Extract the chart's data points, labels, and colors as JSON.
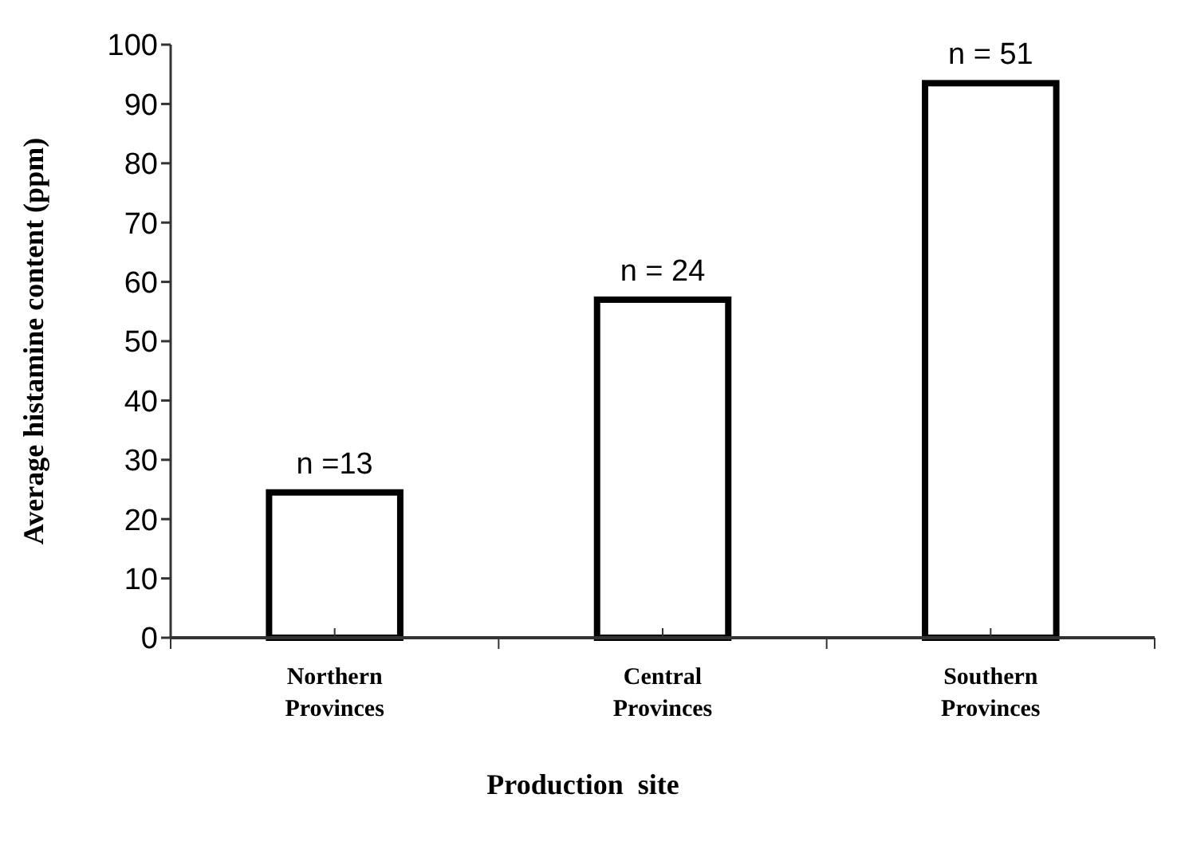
{
  "chart_data": {
    "type": "bar",
    "xlabel": "Production  site",
    "ylabel": "Average histamine content (ppm)",
    "categories": [
      "Northern Provinces",
      "Central Provinces",
      "Southern Provinces"
    ],
    "values": [
      24.5,
      57,
      93.5
    ],
    "color": "#ffffff",
    "ylim": [
      0,
      100
    ],
    "yticks": [
      0,
      10,
      20,
      30,
      40,
      50,
      60,
      70,
      80,
      90,
      100
    ],
    "grid": false,
    "annotations": [
      {
        "text": "n =13",
        "x": "Northern Provinces",
        "y": 24.5
      },
      {
        "text": "n = 24",
        "x": "Central Provinces",
        "y": 57
      },
      {
        "text": "n = 51",
        "x": "Southern Provinces",
        "y": 93.5
      }
    ]
  }
}
